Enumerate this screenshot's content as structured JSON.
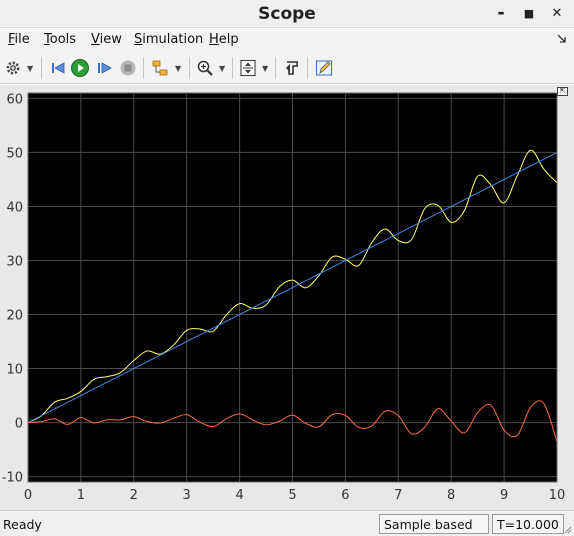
{
  "window": {
    "title": "Scope"
  },
  "window_controls": {
    "minimize": "▬",
    "maximize": "■",
    "close": "✕"
  },
  "menu": {
    "items": [
      {
        "first": "F",
        "rest": "ile"
      },
      {
        "first": "T",
        "rest": "ools"
      },
      {
        "first": "V",
        "rest": "iew"
      },
      {
        "first": "S",
        "rest": "imulation"
      },
      {
        "first": "H",
        "rest": "elp"
      }
    ]
  },
  "toolbar": {
    "icons": [
      "settings-icon",
      "step-back-icon",
      "run-icon",
      "step-forward-icon",
      "stop-icon",
      "highlight-block-icon",
      "zoom-icon",
      "autoscale-icon",
      "restore-layout-icon",
      "edit-style-icon"
    ]
  },
  "statusbar": {
    "status": "Ready",
    "mode": "Sample based",
    "time": "T=10.000"
  },
  "colors": {
    "plot_bg": "#000000",
    "grid": "#4a4a4a",
    "tick_text": "#333333",
    "series_1": "#ffff66",
    "series_2": "#3c8ce6",
    "series_3": "#ff6a3c"
  },
  "chart_data": {
    "type": "line",
    "title": "",
    "xlabel": "",
    "ylabel": "",
    "xlim": [
      0,
      10
    ],
    "ylim": [
      -11,
      61
    ],
    "x_ticks": [
      "0",
      "1",
      "2",
      "3",
      "4",
      "5",
      "6",
      "7",
      "8",
      "9",
      "10"
    ],
    "y_ticks": [
      "-10",
      "0",
      "10",
      "20",
      "30",
      "40",
      "50",
      "60"
    ],
    "grid": true,
    "legend": "none",
    "series": [
      {
        "color": "#ffff66",
        "x": [
          0,
          0.25,
          0.5,
          0.75,
          1,
          1.25,
          1.5,
          1.75,
          2,
          2.25,
          2.5,
          2.75,
          3,
          3.25,
          3.5,
          3.75,
          4,
          4.25,
          4.5,
          4.75,
          5,
          5.25,
          5.5,
          5.75,
          6,
          6.25,
          6.5,
          6.75,
          7,
          7.25,
          7.5,
          7.75,
          8,
          8.25,
          8.5,
          8.75,
          9,
          9.25,
          9.5,
          9.75,
          10
        ],
        "y": [
          0,
          1.23,
          3.75,
          4.49,
          5.76,
          8.02,
          8.5,
          9.26,
          11.49,
          13.26,
          12.67,
          14.32,
          17.08,
          17.32,
          16.9,
          19.92,
          22.01,
          21.16,
          21.76,
          25.12,
          26.36,
          24.95,
          27.2,
          30.64,
          30.23,
          29.06,
          33.34,
          35.83,
          33.69,
          33.85,
          39.61,
          40.22,
          37.08,
          39.23,
          45.61,
          43.96,
          40.67,
          45.7,
          50.41,
          46.93,
          44.37
        ]
      },
      {
        "color": "#3c8ce6",
        "x": [
          0,
          10
        ],
        "y": [
          0,
          50
        ]
      },
      {
        "color": "#ff6a3c",
        "x": [
          0,
          0.25,
          0.5,
          0.75,
          1,
          1.25,
          1.5,
          1.75,
          2,
          2.25,
          2.5,
          2.75,
          3,
          3.25,
          3.5,
          3.75,
          4,
          4.25,
          4.5,
          4.75,
          5,
          5.25,
          5.5,
          5.75,
          6,
          6.25,
          6.5,
          6.75,
          7,
          7.25,
          7.5,
          7.75,
          8,
          8.25,
          8.5,
          8.75,
          9,
          9.25,
          9.5,
          9.75,
          10
        ],
        "y": [
          0,
          0.17,
          0.68,
          -0.34,
          0.92,
          -0.08,
          0.53,
          0.5,
          1.1,
          0.2,
          -0.09,
          0.79,
          1.47,
          0.07,
          -0.74,
          0.7,
          1.61,
          0.48,
          -0.42,
          0.25,
          1.38,
          -0.15,
          -0.78,
          1.47,
          1.33,
          -0.89,
          -0.63,
          2.08,
          1.31,
          -2.07,
          -0.86,
          2.56,
          0.27,
          -1.9,
          1.84,
          3.23,
          -1.38,
          -2.34,
          2.78,
          3.54,
          -3.59
        ]
      }
    ]
  }
}
